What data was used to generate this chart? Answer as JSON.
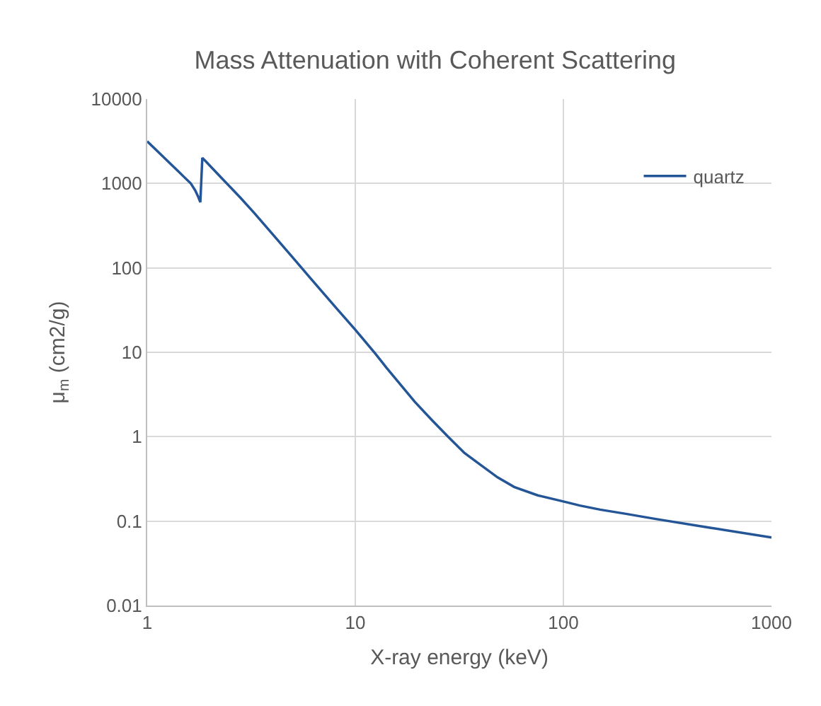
{
  "chart_data": {
    "type": "line",
    "title": "Mass Attenuation with Coherent Scattering",
    "xlabel": "X-ray energy (keV)",
    "ylabel": "μ$_{m}$ (cm2/g)",
    "x": [
      1,
      1.2,
      1.4,
      1.5,
      1.62,
      1.7,
      1.76,
      1.8,
      1.84,
      1.9,
      2.27,
      2.8,
      3.27,
      4,
      5,
      5.52,
      6,
      8,
      10,
      12.5,
      14.1,
      19.3,
      23.2,
      27.9,
      33.5,
      40.2,
      48.3,
      58,
      75.3,
      100,
      120,
      150,
      200,
      278,
      500,
      1000
    ],
    "series": [
      {
        "name": "quartz",
        "color": "#245596",
        "values": [
          3160,
          2050,
          1420,
          1200,
          1000,
          830,
          690,
          600,
          2010,
          1860,
          1170,
          681,
          447,
          251,
          133,
          100,
          78.8,
          34.6,
          18.5,
          9.6,
          6.6,
          2.6,
          1.6,
          1,
          0.64,
          0.46,
          0.33,
          0.254,
          0.202,
          0.171,
          0.153,
          0.137,
          0.122,
          0.106,
          0.084,
          0.064
        ]
      }
    ],
    "xlim": [
      1,
      1000
    ],
    "ylim": [
      0.01,
      10000
    ],
    "xticks": [
      1,
      10,
      100,
      1000
    ],
    "yticks": [
      0.01,
      0.1,
      1,
      10,
      100,
      1000,
      10000
    ],
    "log": "xy",
    "grid": true,
    "legend": "top right",
    "line_style": "solid"
  }
}
